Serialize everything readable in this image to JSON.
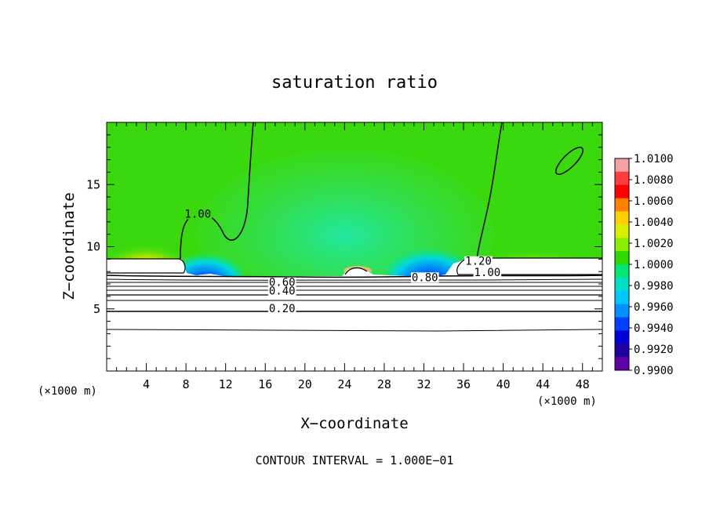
{
  "chart_data": {
    "type": "heatmap",
    "title": "saturation ratio",
    "xlabel": "X−coordinate",
    "ylabel": "Z−coordinate",
    "x_unit_left": "(×1000 m)",
    "x_unit_right": "(×1000 m)",
    "footer": "CONTOUR INTERVAL = 1.000E−01",
    "xlim": [
      0,
      50
    ],
    "ylim": [
      0,
      20
    ],
    "x_ticks": [
      4,
      8,
      12,
      16,
      20,
      24,
      28,
      32,
      36,
      40,
      44,
      48
    ],
    "x_minor_step": 1,
    "y_ticks": [
      5,
      10,
      15
    ],
    "y_minor_step": 1,
    "colorbar": {
      "ticks": [
        "1.0100",
        "1.0080",
        "1.0060",
        "1.0040",
        "1.0020",
        "1.0000",
        "0.9980",
        "0.9960",
        "0.9940",
        "0.9920",
        "0.9900"
      ],
      "colors": [
        "#f4a0a0",
        "#ff3b3b",
        "#ff0000",
        "#ff8000",
        "#ffd000",
        "#d8f000",
        "#8af000",
        "#30d800",
        "#00e870",
        "#00e0c8",
        "#00c8ff",
        "#0090ff",
        "#0040ff",
        "#0000d8",
        "#2000a0",
        "#6000a8"
      ]
    },
    "contour_labels": [
      {
        "text": "1.00",
        "x": 9.2,
        "z": 12.4
      },
      {
        "text": "1.20",
        "x": 37.5,
        "z": 8.6
      },
      {
        "text": "1.00",
        "x": 38.4,
        "z": 7.7
      },
      {
        "text": "0.80",
        "x": 32.1,
        "z": 7.3
      },
      {
        "text": "0.60",
        "x": 17.7,
        "z": 6.9
      },
      {
        "text": "0.40",
        "x": 17.7,
        "z": 6.2
      },
      {
        "text": "0.20",
        "x": 17.7,
        "z": 4.8
      }
    ],
    "contour_levels": [
      {
        "label": "0.20",
        "z": 4.8
      },
      {
        "label": "0.40",
        "z": 6.2
      },
      {
        "label": "0.60",
        "z": 6.9
      },
      {
        "label": "0.80",
        "z": 7.5
      },
      {
        "label": "1.00",
        "z": 7.8
      }
    ]
  }
}
